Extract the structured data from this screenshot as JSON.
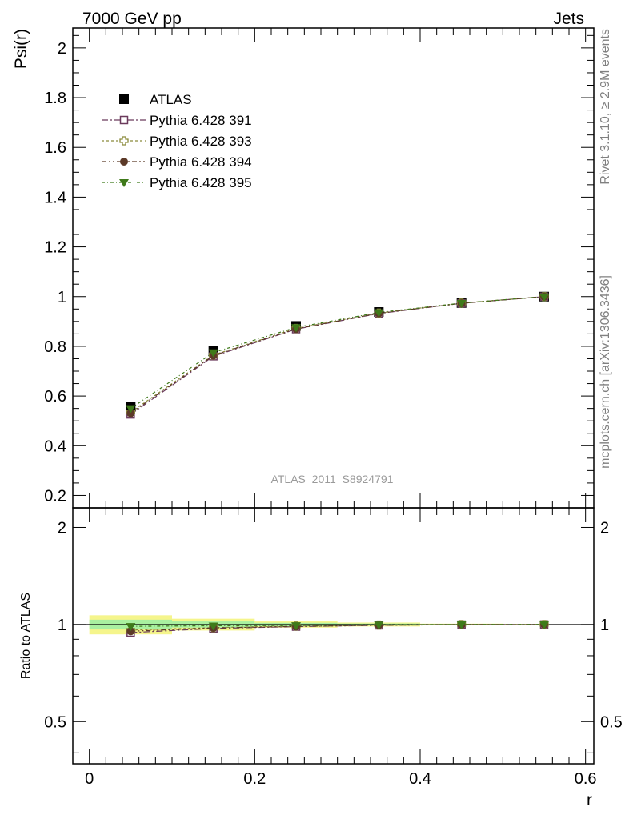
{
  "header": {
    "left": "7000 GeV pp",
    "right": "Jets"
  },
  "side_labels": {
    "top": "Rivet 3.1.10, ≥ 2.9M events",
    "bottom": "mcplots.cern.ch [arXiv:1306.3436]"
  },
  "watermark": "ATLAS_2011_S8924791",
  "chart_data": [
    {
      "type": "scatter",
      "panel": "main",
      "title": "",
      "xlabel": "",
      "ylabel": "Psi(r)",
      "xlim": [
        -0.02,
        0.61
      ],
      "ylim": [
        0.15,
        2.08
      ],
      "yticks": [
        0.2,
        0.4,
        0.6,
        0.8,
        1,
        1.2,
        1.4,
        1.6,
        1.8,
        2
      ],
      "ytick_labels": [
        "0.2",
        "0.4",
        "0.6",
        "0.8",
        "1",
        "1.2",
        "1.4",
        "1.6",
        "1.8",
        "2"
      ],
      "x": [
        0.05,
        0.15,
        0.25,
        0.35,
        0.45,
        0.55
      ],
      "series": [
        {
          "name": "ATLAS",
          "color": "#000000",
          "marker": "square-filled",
          "values": [
            0.557,
            0.782,
            0.882,
            0.938,
            0.974,
            1.0
          ]
        },
        {
          "name": "Pythia 6.428 391",
          "color": "#6b3a5c",
          "marker": "square-open",
          "values": [
            0.526,
            0.76,
            0.869,
            0.932,
            0.973,
            1.0
          ]
        },
        {
          "name": "Pythia 6.428 393",
          "color": "#8a8a3a",
          "marker": "cross-open",
          "values": [
            0.535,
            0.765,
            0.872,
            0.934,
            0.974,
            1.0
          ]
        },
        {
          "name": "Pythia 6.428 394",
          "color": "#5c3a28",
          "marker": "circle-filled",
          "values": [
            0.531,
            0.763,
            0.87,
            0.933,
            0.973,
            1.0
          ]
        },
        {
          "name": "Pythia 6.428 395",
          "color": "#3f7a1a",
          "marker": "triangle-down-filled",
          "values": [
            0.55,
            0.775,
            0.876,
            0.936,
            0.974,
            1.0
          ]
        }
      ]
    },
    {
      "type": "scatter",
      "panel": "ratio",
      "title": "",
      "xlabel": "r",
      "ylabel": "Ratio to ATLAS",
      "xlim": [
        -0.02,
        0.61
      ],
      "ylim": [
        0.37,
        2.3
      ],
      "log_y": true,
      "yticks": [
        0.5,
        1,
        2
      ],
      "ytick_labels": [
        "0.5",
        "1",
        "2"
      ],
      "xticks": [
        0,
        0.2,
        0.4,
        0.6
      ],
      "xtick_labels": [
        "0",
        "0.2",
        "0.4",
        "0.6"
      ],
      "x": [
        0.05,
        0.15,
        0.25,
        0.35,
        0.45,
        0.55
      ],
      "band_edges": [
        0.0,
        0.1,
        0.2,
        0.3,
        0.4,
        0.5,
        0.6
      ],
      "band_outer": [
        0.068,
        0.042,
        0.022,
        0.014,
        0.006,
        0.002
      ],
      "band_inner": [
        0.035,
        0.022,
        0.012,
        0.007,
        0.003,
        0.001
      ],
      "series": [
        {
          "name": "Pythia 6.428 391",
          "values": [
            0.944,
            0.972,
            0.985,
            0.994,
            0.999,
            1.0
          ]
        },
        {
          "name": "Pythia 6.428 393",
          "values": [
            0.961,
            0.978,
            0.989,
            0.996,
            1.0,
            1.0
          ]
        },
        {
          "name": "Pythia 6.428 394",
          "values": [
            0.953,
            0.976,
            0.986,
            0.995,
            0.999,
            1.0
          ]
        },
        {
          "name": "Pythia 6.428 395",
          "values": [
            0.987,
            0.991,
            0.993,
            0.998,
            1.0,
            1.0
          ]
        }
      ]
    }
  ]
}
